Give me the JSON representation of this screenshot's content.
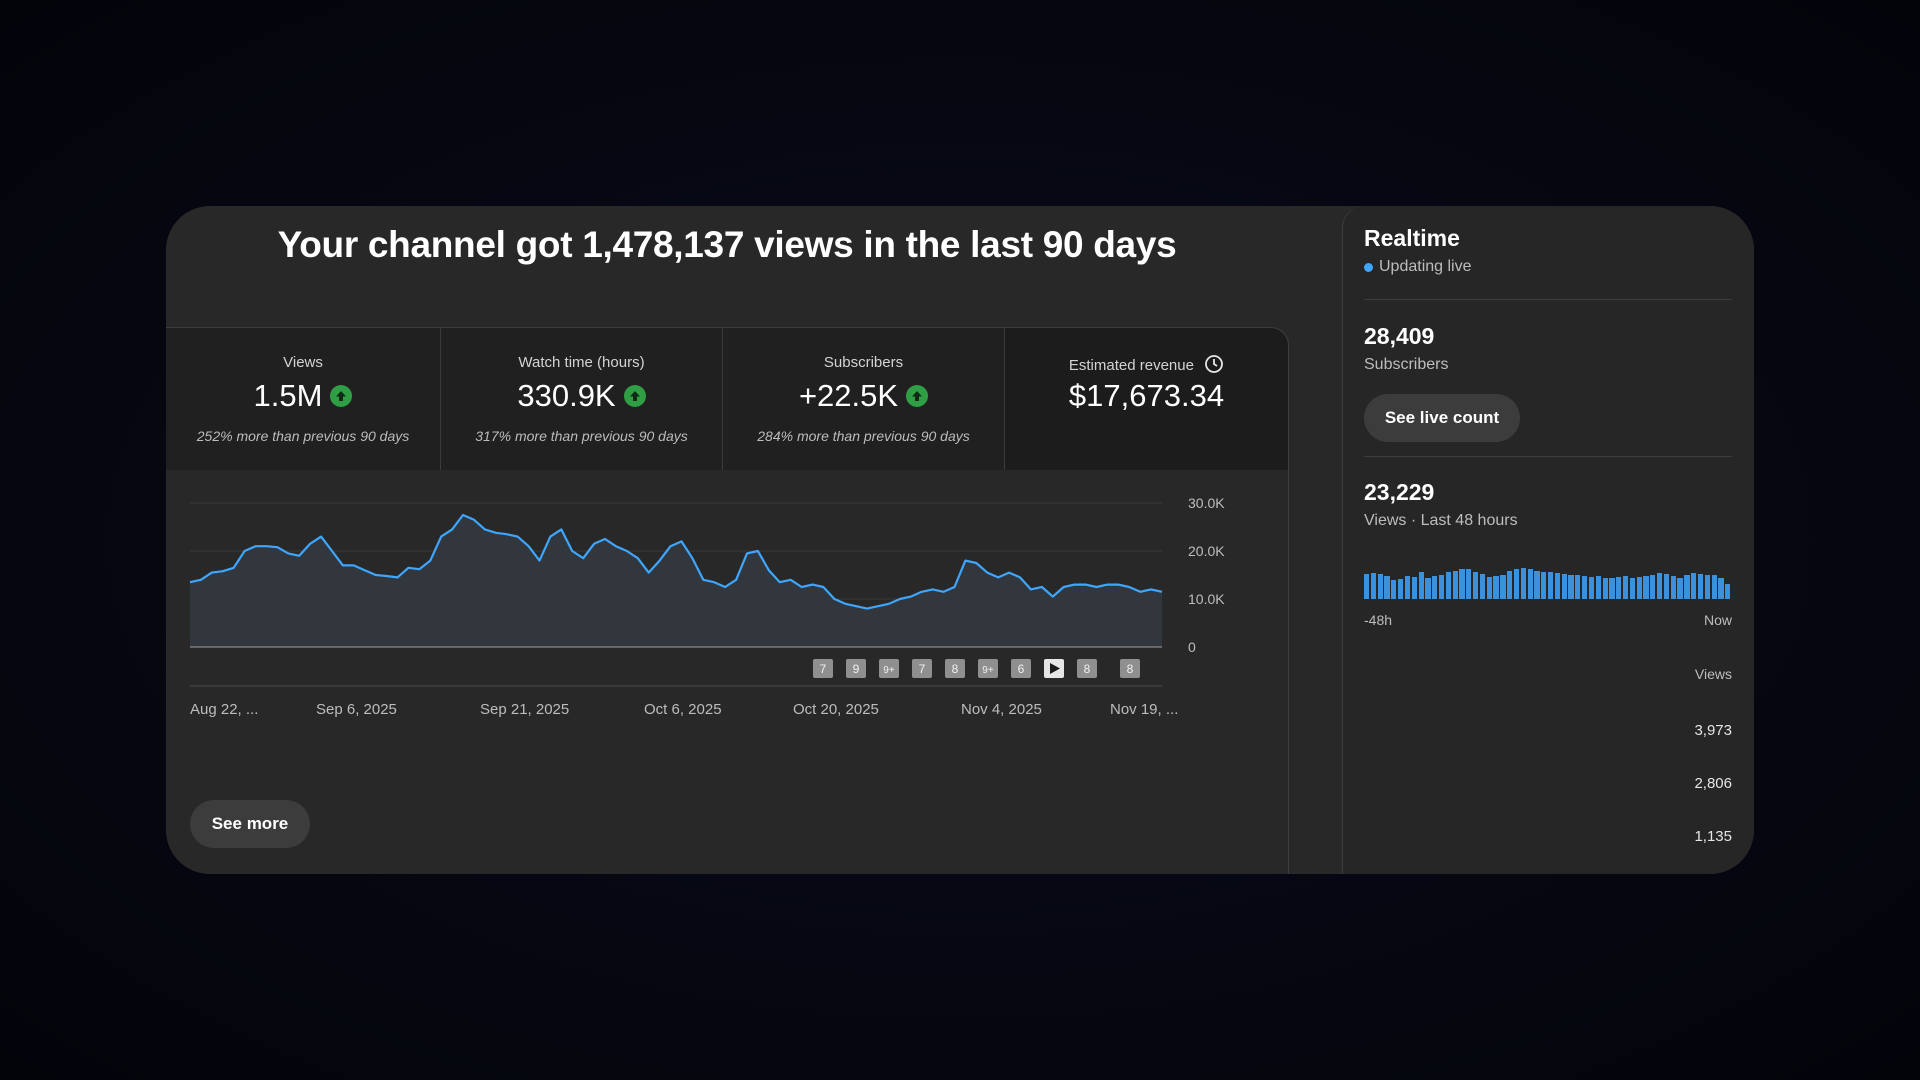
{
  "headline": "Your channel got 1,478,137 views in the last 90 days",
  "metrics": [
    {
      "label": "Views",
      "value": "1.5M",
      "delta": "252% more than previous 90 days",
      "trend_icon": "arrow-up-icon"
    },
    {
      "label": "Watch time (hours)",
      "value": "330.9K",
      "delta": "317% more than previous 90 days",
      "trend_icon": "arrow-up-icon"
    },
    {
      "label": "Subscribers",
      "value": "+22.5K",
      "delta": "284% more than previous 90 days",
      "trend_icon": "arrow-up-icon"
    },
    {
      "label": "Estimated revenue",
      "value": "$17,673.34",
      "info_icon": "clock-icon"
    }
  ],
  "chart_data": {
    "type": "area",
    "yticks": [
      "30.0K",
      "20.0K",
      "10.0K",
      "0"
    ],
    "ylim": [
      0,
      30000
    ],
    "xticks": [
      "Aug 22, ...",
      "Sep 6, 2025",
      "Sep 21, 2025",
      "Oct 6, 2025",
      "Oct 20, 2025",
      "Nov 4, 2025",
      "Nov 19, ..."
    ],
    "grid": true,
    "values": [
      13500,
      14000,
      15500,
      15800,
      16500,
      20000,
      21000,
      21000,
      20800,
      19500,
      19000,
      21500,
      23000,
      20000,
      17000,
      17000,
      16000,
      15000,
      14800,
      14500,
      16500,
      16200,
      18000,
      23000,
      24500,
      27500,
      26500,
      24500,
      23800,
      23500,
      23000,
      21000,
      18000,
      23000,
      24500,
      20000,
      18500,
      21500,
      22500,
      21000,
      20000,
      18500,
      15500,
      18000,
      21000,
      22000,
      18500,
      14000,
      13500,
      12500,
      14000,
      19500,
      20000,
      16000,
      13500,
      14000,
      12500,
      13000,
      12500,
      10000,
      9000,
      8500,
      8000,
      8500,
      9000,
      10000,
      10500,
      11500,
      12000,
      11500,
      12500,
      18000,
      17500,
      15500,
      14500,
      15500,
      14500,
      12000,
      12500,
      10500,
      12500,
      13000,
      13000,
      12500,
      13000,
      13000,
      12500,
      11500,
      12000,
      11500
    ],
    "markers": [
      "7",
      "9",
      "9+",
      "7",
      "8",
      "9+",
      "6",
      "play-icon",
      "8",
      "8"
    ],
    "line_color": "#3ea6ff",
    "fill_color": "#32373e"
  },
  "see_more_label": "See more",
  "realtime": {
    "title": "Realtime",
    "status": "Updating live",
    "subscribers_value": "28,409",
    "subscribers_label": "Subscribers",
    "live_count_label": "See live count",
    "views_value": "23,229",
    "views_label": "Views · Last 48 hours",
    "bar_values": [
      0.65,
      0.68,
      0.66,
      0.6,
      0.5,
      0.52,
      0.6,
      0.58,
      0.7,
      0.55,
      0.6,
      0.62,
      0.7,
      0.75,
      0.8,
      0.78,
      0.72,
      0.65,
      0.58,
      0.6,
      0.62,
      0.75,
      0.8,
      0.82,
      0.78,
      0.75,
      0.72,
      0.7,
      0.68,
      0.66,
      0.64,
      0.62,
      0.6,
      0.58,
      0.6,
      0.56,
      0.55,
      0.58,
      0.6,
      0.55,
      0.58,
      0.6,
      0.64,
      0.68,
      0.65,
      0.6,
      0.55,
      0.62,
      0.68,
      0.66,
      0.64,
      0.62,
      0.55,
      0.4
    ],
    "bar_color": "#3ea6ff",
    "axis_start": "-48h",
    "axis_end": "Now",
    "table_header": "Views",
    "table_values": [
      "3,973",
      "2,806",
      "1,135"
    ]
  }
}
